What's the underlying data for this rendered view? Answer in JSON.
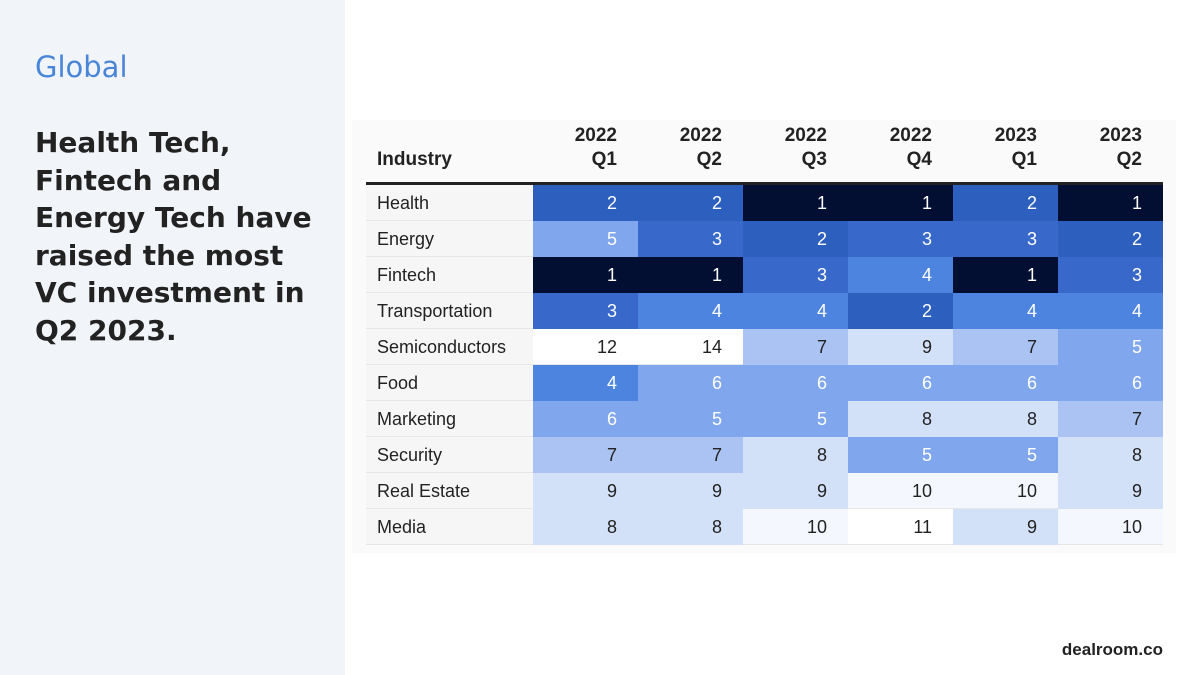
{
  "header": {
    "region": "Global",
    "title": "Health Tech, Fintech and Energy Tech have raised the most VC investment in Q2 2023."
  },
  "table": {
    "columns": [
      "Industry",
      [
        "2022",
        "Q1"
      ],
      [
        "2022",
        "Q2"
      ],
      [
        "2022",
        "Q3"
      ],
      [
        "2022",
        "Q4"
      ],
      [
        "2023",
        "Q1"
      ],
      [
        "2023",
        "Q2"
      ]
    ],
    "rows": [
      [
        "Health",
        2,
        2,
        1,
        1,
        2,
        1
      ],
      [
        "Energy",
        5,
        3,
        2,
        3,
        3,
        2
      ],
      [
        "Fintech",
        1,
        1,
        3,
        4,
        1,
        3
      ],
      [
        "Transportation",
        3,
        4,
        4,
        2,
        4,
        4
      ],
      [
        "Semiconductors",
        12,
        14,
        7,
        9,
        7,
        5
      ],
      [
        "Food",
        4,
        6,
        6,
        6,
        6,
        6
      ],
      [
        "Marketing",
        6,
        5,
        5,
        8,
        8,
        7
      ],
      [
        "Security",
        7,
        7,
        8,
        5,
        5,
        8
      ],
      [
        "Real Estate",
        9,
        9,
        9,
        10,
        10,
        9
      ],
      [
        "Media",
        8,
        8,
        10,
        11,
        9,
        10
      ]
    ]
  },
  "footer": {
    "brand": "dealroom.co"
  }
}
